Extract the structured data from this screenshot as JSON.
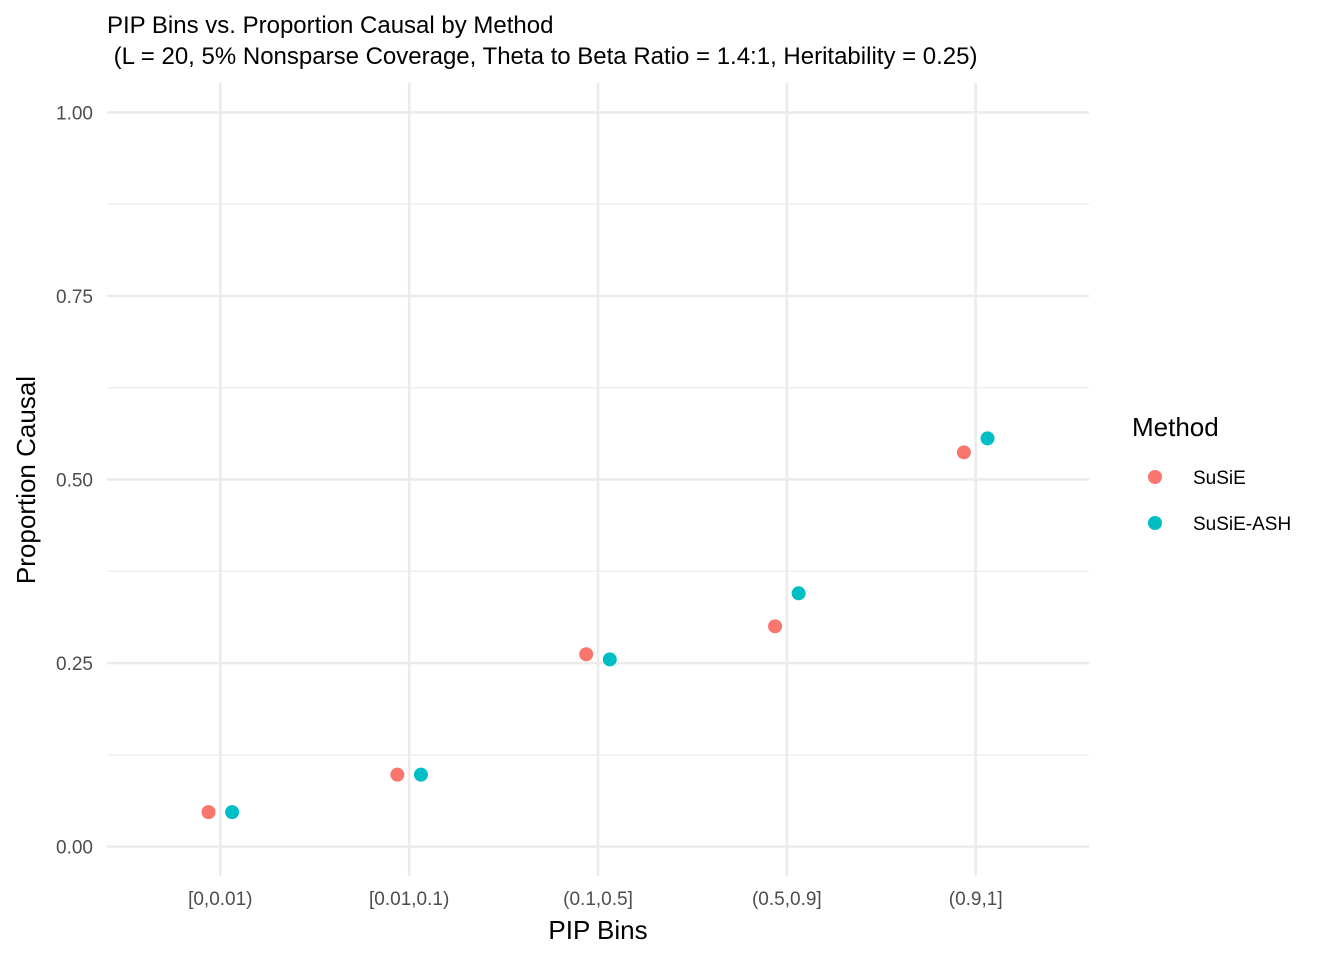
{
  "chart_data": {
    "type": "scatter",
    "title": "PIP Bins vs. Proportion Causal by Method",
    "subtitle": " (L = 20, 5% Nonsparse Coverage, Theta to Beta Ratio = 1.4:1, Heritability = 0.25)",
    "xlabel": "PIP Bins",
    "ylabel": "Proportion Causal",
    "categories": [
      "[0,0.01)",
      "[0.01,0.1)",
      "(0.1,0.5]",
      "(0.5,0.9]",
      "(0.9,1]"
    ],
    "ylim": [
      -0.04,
      1.04
    ],
    "yticks": [
      0.0,
      0.25,
      0.5,
      0.75,
      1.0
    ],
    "ytick_labels": [
      "0.00",
      "0.25",
      "0.50",
      "0.75",
      "1.00"
    ],
    "grid": true,
    "legend": {
      "title": "Method",
      "position": "right"
    },
    "series": [
      {
        "name": "SuSiE",
        "color": "#F8766D",
        "values": [
          0.047,
          0.098,
          0.262,
          0.3,
          0.537
        ]
      },
      {
        "name": "SuSiE-ASH",
        "color": "#00BFC4",
        "values": [
          0.047,
          0.098,
          0.255,
          0.345,
          0.556
        ]
      }
    ]
  }
}
